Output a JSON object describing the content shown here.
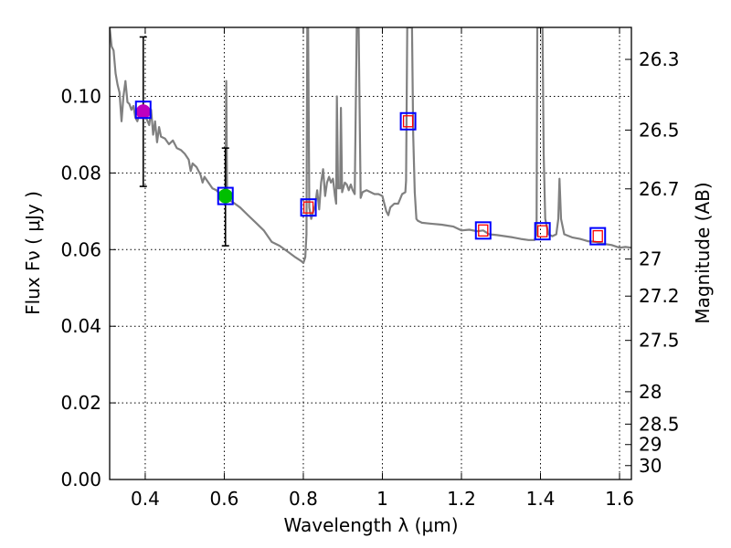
{
  "chart_data": {
    "type": "scatter",
    "xlabel": "Wavelength  λ (μm)",
    "ylabel": "Flux  Fν  ( μJy )",
    "ylabel_right": "Magnitude (AB)",
    "xlim": [
      0.31,
      1.63
    ],
    "ylim": [
      0.0,
      0.118
    ],
    "grid": true,
    "x_ticks": [
      0.4,
      0.6,
      0.8,
      1.0,
      1.2,
      1.4,
      1.6
    ],
    "x_tick_labels": [
      "0.4",
      "0.6",
      "0.8",
      "1",
      "1.2",
      "1.4",
      "1.6"
    ],
    "y_ticks": [
      0.0,
      0.02,
      0.04,
      0.06,
      0.08,
      0.1
    ],
    "y_tick_labels": [
      "0.00",
      "0.02",
      "0.04",
      "0.06",
      "0.08",
      "0.10"
    ],
    "mag_ticks": [
      26.3,
      26.5,
      26.7,
      27,
      27.2,
      27.5,
      28,
      28.5,
      29,
      30
    ],
    "mag_tick_labels": [
      "26.3",
      "26.5",
      "26.7",
      "27",
      "27.2",
      "27.5",
      "28",
      "28.5",
      "29",
      "30"
    ],
    "observed": [
      {
        "x": 0.395,
        "y": 0.096,
        "yerr_low": 0.0765,
        "yerr_high": 0.1155,
        "color": "#bf00bf"
      },
      {
        "x": 0.603,
        "y": 0.074,
        "yerr_low": 0.061,
        "yerr_high": 0.0865,
        "color": "#00bf00"
      }
    ],
    "model_boxes": [
      {
        "x": 0.395,
        "y": 0.0965
      },
      {
        "x": 0.603,
        "y": 0.074
      },
      {
        "x": 0.813,
        "y": 0.071
      },
      {
        "x": 1.065,
        "y": 0.0935
      },
      {
        "x": 1.255,
        "y": 0.065
      },
      {
        "x": 1.405,
        "y": 0.0648
      },
      {
        "x": 1.545,
        "y": 0.0635
      }
    ],
    "model_inner_boxes": [
      {
        "x": 0.813,
        "y": 0.071
      },
      {
        "x": 1.065,
        "y": 0.0935
      },
      {
        "x": 1.255,
        "y": 0.065
      },
      {
        "x": 1.405,
        "y": 0.0648
      },
      {
        "x": 1.545,
        "y": 0.0635
      }
    ],
    "spectrum": [
      [
        0.31,
        0.118
      ],
      [
        0.315,
        0.113
      ],
      [
        0.32,
        0.112
      ],
      [
        0.325,
        0.106
      ],
      [
        0.33,
        0.103
      ],
      [
        0.335,
        0.101
      ],
      [
        0.34,
        0.0935
      ],
      [
        0.345,
        0.1
      ],
      [
        0.35,
        0.104
      ],
      [
        0.355,
        0.0985
      ],
      [
        0.36,
        0.098
      ],
      [
        0.365,
        0.0965
      ],
      [
        0.37,
        0.0975
      ],
      [
        0.375,
        0.0945
      ],
      [
        0.38,
        0.0935
      ],
      [
        0.385,
        0.0955
      ],
      [
        0.39,
        0.0945
      ],
      [
        0.395,
        0.096
      ],
      [
        0.4,
        0.095
      ],
      [
        0.41,
        0.0925
      ],
      [
        0.415,
        0.0965
      ],
      [
        0.42,
        0.09
      ],
      [
        0.425,
        0.0935
      ],
      [
        0.43,
        0.088
      ],
      [
        0.435,
        0.092
      ],
      [
        0.44,
        0.0895
      ],
      [
        0.45,
        0.089
      ],
      [
        0.46,
        0.0875
      ],
      [
        0.47,
        0.0885
      ],
      [
        0.48,
        0.0865
      ],
      [
        0.49,
        0.086
      ],
      [
        0.5,
        0.085
      ],
      [
        0.51,
        0.0835
      ],
      [
        0.515,
        0.0805
      ],
      [
        0.52,
        0.0825
      ],
      [
        0.53,
        0.0815
      ],
      [
        0.54,
        0.0795
      ],
      [
        0.545,
        0.0775
      ],
      [
        0.55,
        0.079
      ],
      [
        0.56,
        0.0775
      ],
      [
        0.57,
        0.076
      ],
      [
        0.58,
        0.0755
      ],
      [
        0.59,
        0.0745
      ],
      [
        0.595,
        0.075
      ],
      [
        0.6,
        0.0745
      ],
      [
        0.603,
        0.076
      ],
      [
        0.605,
        0.104
      ],
      [
        0.607,
        0.075
      ],
      [
        0.61,
        0.073
      ],
      [
        0.62,
        0.0725
      ],
      [
        0.64,
        0.071
      ],
      [
        0.66,
        0.069
      ],
      [
        0.68,
        0.067
      ],
      [
        0.7,
        0.065
      ],
      [
        0.72,
        0.062
      ],
      [
        0.74,
        0.061
      ],
      [
        0.76,
        0.0595
      ],
      [
        0.78,
        0.058
      ],
      [
        0.795,
        0.057
      ],
      [
        0.8,
        0.0565
      ],
      [
        0.805,
        0.058
      ],
      [
        0.808,
        0.064
      ],
      [
        0.81,
        0.118
      ],
      [
        0.812,
        0.118
      ],
      [
        0.815,
        0.071
      ],
      [
        0.82,
        0.068
      ],
      [
        0.825,
        0.07
      ],
      [
        0.83,
        0.0715
      ],
      [
        0.835,
        0.0755
      ],
      [
        0.84,
        0.0705
      ],
      [
        0.845,
        0.0775
      ],
      [
        0.85,
        0.081
      ],
      [
        0.855,
        0.074
      ],
      [
        0.86,
        0.0775
      ],
      [
        0.865,
        0.079
      ],
      [
        0.87,
        0.0775
      ],
      [
        0.875,
        0.0785
      ],
      [
        0.88,
        0.074
      ],
      [
        0.883,
        0.072
      ],
      [
        0.885,
        0.1
      ],
      [
        0.888,
        0.076
      ],
      [
        0.893,
        0.076
      ],
      [
        0.895,
        0.097
      ],
      [
        0.898,
        0.075
      ],
      [
        0.905,
        0.0775
      ],
      [
        0.91,
        0.077
      ],
      [
        0.915,
        0.0755
      ],
      [
        0.92,
        0.077
      ],
      [
        0.925,
        0.0755
      ],
      [
        0.93,
        0.0745
      ],
      [
        0.935,
        0.118
      ],
      [
        0.94,
        0.118
      ],
      [
        0.945,
        0.0735
      ],
      [
        0.95,
        0.075
      ],
      [
        0.96,
        0.0755
      ],
      [
        0.97,
        0.075
      ],
      [
        0.98,
        0.0745
      ],
      [
        0.99,
        0.0745
      ],
      [
        1.0,
        0.074
      ],
      [
        1.005,
        0.072
      ],
      [
        1.01,
        0.07
      ],
      [
        1.015,
        0.069
      ],
      [
        1.02,
        0.071
      ],
      [
        1.03,
        0.072
      ],
      [
        1.04,
        0.072
      ],
      [
        1.05,
        0.0745
      ],
      [
        1.058,
        0.075
      ],
      [
        1.06,
        0.078
      ],
      [
        1.063,
        0.118
      ],
      [
        1.075,
        0.118
      ],
      [
        1.078,
        0.09
      ],
      [
        1.082,
        0.075
      ],
      [
        1.086,
        0.068
      ],
      [
        1.09,
        0.0675
      ],
      [
        1.1,
        0.067
      ],
      [
        1.12,
        0.0668
      ],
      [
        1.15,
        0.0665
      ],
      [
        1.18,
        0.066
      ],
      [
        1.2,
        0.065
      ],
      [
        1.22,
        0.0652
      ],
      [
        1.24,
        0.0648
      ],
      [
        1.255,
        0.065
      ],
      [
        1.27,
        0.064
      ],
      [
        1.29,
        0.0638
      ],
      [
        1.31,
        0.0635
      ],
      [
        1.33,
        0.0632
      ],
      [
        1.35,
        0.0628
      ],
      [
        1.37,
        0.0625
      ],
      [
        1.385,
        0.0625
      ],
      [
        1.39,
        0.064
      ],
      [
        1.392,
        0.118
      ],
      [
        1.405,
        0.118
      ],
      [
        1.408,
        0.085
      ],
      [
        1.412,
        0.068
      ],
      [
        1.42,
        0.064
      ],
      [
        1.43,
        0.0635
      ],
      [
        1.44,
        0.064
      ],
      [
        1.445,
        0.068
      ],
      [
        1.448,
        0.0785
      ],
      [
        1.452,
        0.068
      ],
      [
        1.46,
        0.064
      ],
      [
        1.48,
        0.0632
      ],
      [
        1.5,
        0.0628
      ],
      [
        1.52,
        0.0622
      ],
      [
        1.54,
        0.062
      ],
      [
        1.56,
        0.0615
      ],
      [
        1.58,
        0.0612
      ],
      [
        1.6,
        0.0605
      ],
      [
        1.615,
        0.0607
      ],
      [
        1.63,
        0.0605
      ]
    ],
    "colors": {
      "spectrum": "#808080",
      "model_box": "#0000ff",
      "model_inner_box": "#ff0000",
      "errorbar": "#000000",
      "grid": "#000000"
    }
  }
}
